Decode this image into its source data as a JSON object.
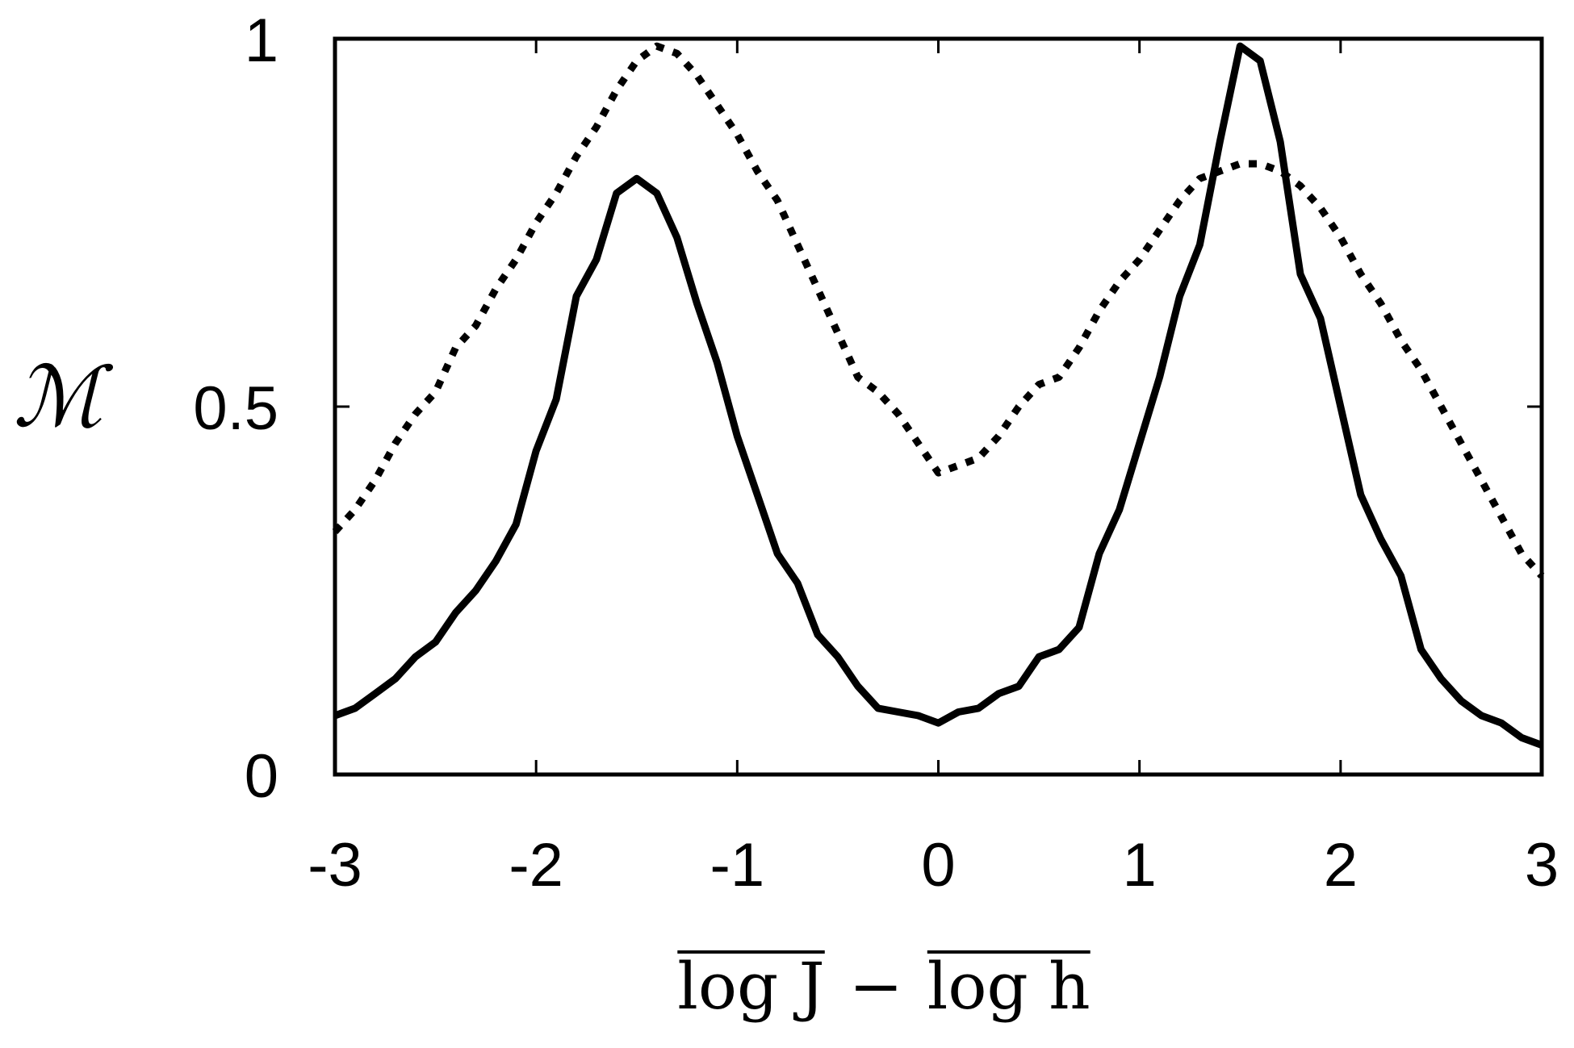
{
  "chart_data": {
    "type": "line",
    "title": "",
    "xlabel": "log J − log h",
    "xlabel_parts": [
      "log J",
      "−",
      "log h"
    ],
    "ylabel": "ℳ",
    "xlim": [
      -3,
      3
    ],
    "ylim": [
      0,
      1
    ],
    "xticks": [
      -3,
      -2,
      -1,
      0,
      1,
      2,
      3
    ],
    "yticks": [
      0,
      0.5,
      1
    ],
    "xtick_labels": [
      "-3",
      "-2",
      "-1",
      "0",
      "1",
      "2",
      "3"
    ],
    "ytick_labels": [
      "0",
      "0.5",
      "1"
    ],
    "grid": false,
    "series": [
      {
        "style": "solid",
        "color": "#000000",
        "x": [
          -3.0,
          -2.9,
          -2.8,
          -2.7,
          -2.6,
          -2.5,
          -2.4,
          -2.3,
          -2.2,
          -2.1,
          -2.0,
          -1.9,
          -1.8,
          -1.7,
          -1.6,
          -1.5,
          -1.4,
          -1.3,
          -1.2,
          -1.1,
          -1.0,
          -0.9,
          -0.8,
          -0.7,
          -0.6,
          -0.5,
          -0.4,
          -0.3,
          -0.2,
          -0.1,
          0.0,
          0.1,
          0.2,
          0.3,
          0.4,
          0.5,
          0.6,
          0.7,
          0.8,
          0.9,
          1.0,
          1.1,
          1.2,
          1.3,
          1.4,
          1.5,
          1.6,
          1.7,
          1.8,
          1.9,
          2.0,
          2.1,
          2.2,
          2.3,
          2.4,
          2.5,
          2.6,
          2.7,
          2.8,
          2.9,
          3.0
        ],
        "y": [
          0.08,
          0.09,
          0.11,
          0.13,
          0.16,
          0.18,
          0.22,
          0.25,
          0.29,
          0.34,
          0.44,
          0.51,
          0.65,
          0.7,
          0.79,
          0.81,
          0.79,
          0.73,
          0.64,
          0.56,
          0.46,
          0.38,
          0.3,
          0.26,
          0.19,
          0.16,
          0.12,
          0.09,
          0.085,
          0.08,
          0.07,
          0.085,
          0.09,
          0.11,
          0.12,
          0.16,
          0.17,
          0.2,
          0.3,
          0.36,
          0.45,
          0.54,
          0.65,
          0.72,
          0.86,
          0.99,
          0.97,
          0.86,
          0.68,
          0.62,
          0.5,
          0.38,
          0.32,
          0.27,
          0.17,
          0.13,
          0.1,
          0.08,
          0.07,
          0.05,
          0.04
        ]
      },
      {
        "style": "dotted",
        "color": "#000000",
        "x": [
          -3.0,
          -2.9,
          -2.8,
          -2.7,
          -2.6,
          -2.5,
          -2.4,
          -2.3,
          -2.2,
          -2.1,
          -2.0,
          -1.9,
          -1.8,
          -1.7,
          -1.6,
          -1.5,
          -1.4,
          -1.3,
          -1.2,
          -1.1,
          -1.0,
          -0.9,
          -0.8,
          -0.7,
          -0.6,
          -0.5,
          -0.4,
          -0.3,
          -0.2,
          -0.1,
          0.0,
          0.1,
          0.2,
          0.3,
          0.4,
          0.5,
          0.6,
          0.7,
          0.8,
          0.9,
          1.0,
          1.1,
          1.2,
          1.3,
          1.4,
          1.5,
          1.6,
          1.7,
          1.8,
          1.9,
          2.0,
          2.1,
          2.2,
          2.3,
          2.4,
          2.5,
          2.6,
          2.7,
          2.8,
          2.9,
          3.0
        ],
        "y": [
          0.33,
          0.36,
          0.4,
          0.45,
          0.49,
          0.52,
          0.58,
          0.61,
          0.66,
          0.7,
          0.75,
          0.79,
          0.84,
          0.88,
          0.93,
          0.97,
          0.99,
          0.98,
          0.95,
          0.91,
          0.87,
          0.82,
          0.78,
          0.72,
          0.66,
          0.6,
          0.54,
          0.52,
          0.49,
          0.45,
          0.41,
          0.42,
          0.43,
          0.46,
          0.5,
          0.53,
          0.54,
          0.58,
          0.63,
          0.67,
          0.7,
          0.74,
          0.78,
          0.81,
          0.82,
          0.83,
          0.83,
          0.82,
          0.8,
          0.77,
          0.73,
          0.68,
          0.64,
          0.59,
          0.55,
          0.5,
          0.45,
          0.4,
          0.35,
          0.3,
          0.27
        ]
      }
    ]
  }
}
